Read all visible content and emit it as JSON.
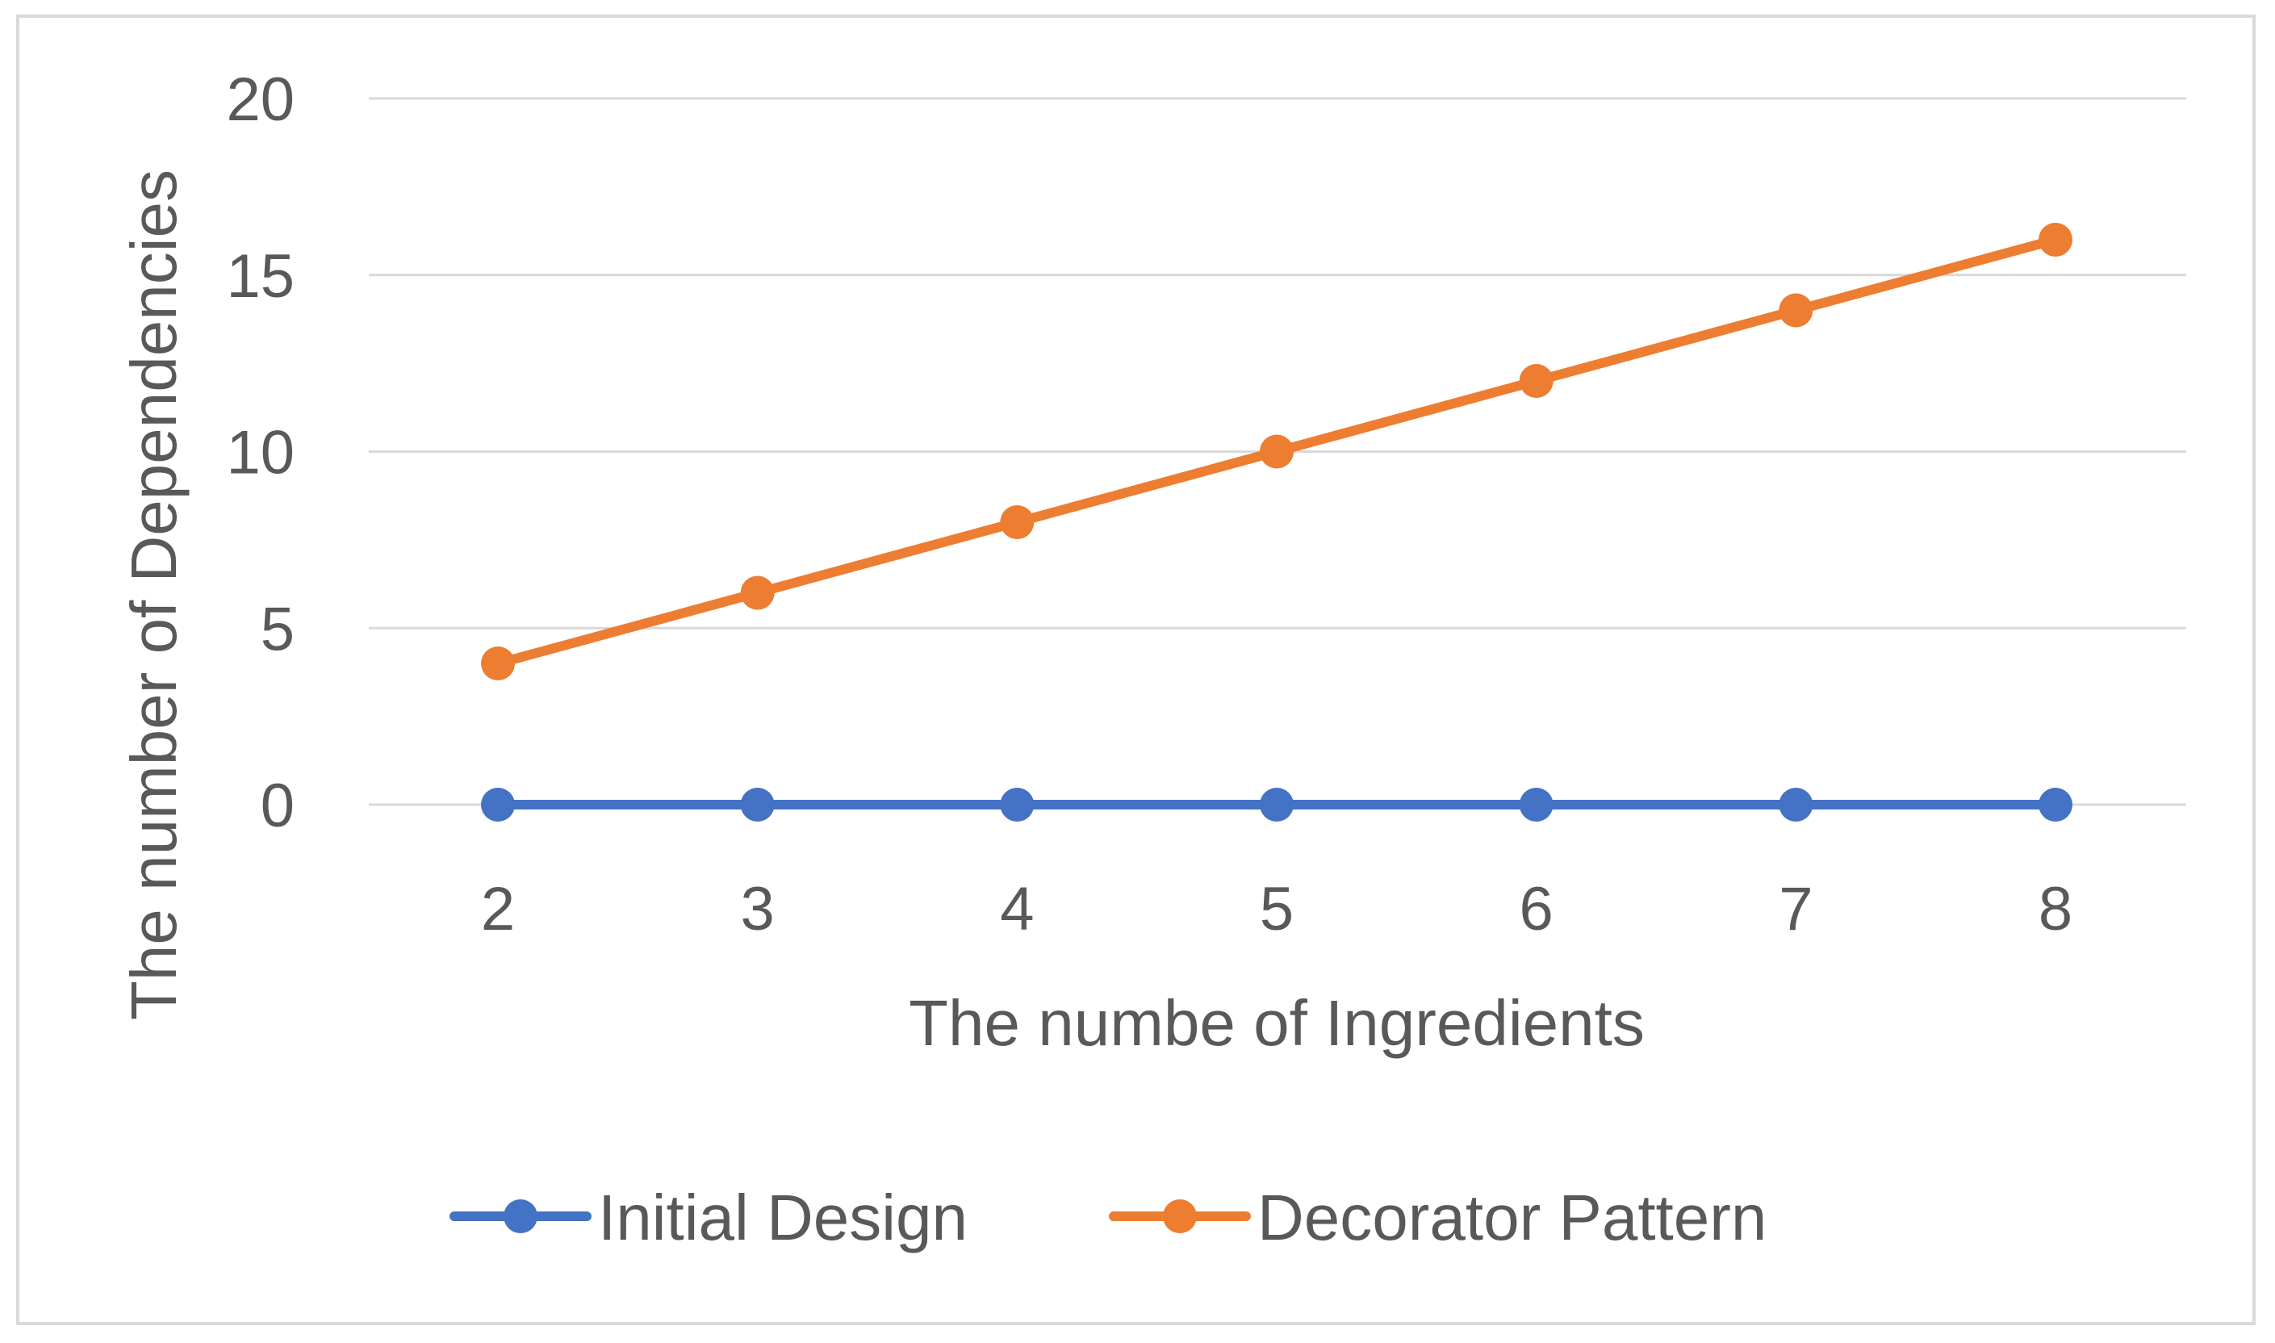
{
  "chart_data": {
    "type": "line",
    "title": "",
    "xlabel": "The numbe of Ingredients",
    "ylabel": "The number of Dependencies",
    "x": [
      2,
      3,
      4,
      5,
      6,
      7,
      8
    ],
    "ylim": [
      0,
      20
    ],
    "yticks": [
      0,
      5,
      10,
      15,
      20
    ],
    "grid": true,
    "legend_position": "bottom",
    "series": [
      {
        "name": "Initial Design",
        "color": "#4472c4",
        "values": [
          0,
          0,
          0,
          0,
          0,
          0,
          0
        ]
      },
      {
        "name": "Decorator Pattern",
        "color": "#ed7d31",
        "values": [
          4,
          6,
          8,
          10,
          12,
          14,
          16
        ]
      }
    ]
  },
  "colors": {
    "gridline": "#d9d9d9",
    "text": "#595959"
  }
}
